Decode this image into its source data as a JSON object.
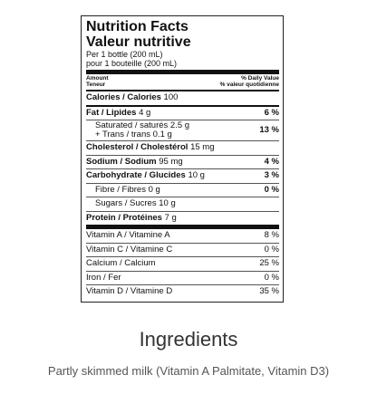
{
  "label": {
    "title_en": "Nutrition Facts",
    "title_fr": "Valeur nutritive",
    "serving_en": "Per 1 bottle (200 mL)",
    "serving_fr": "pour 1 bouteille (200 mL)",
    "header": {
      "amount_en": "Amount",
      "amount_fr": "Teneur",
      "dv_en": "% Daily Value",
      "dv_fr": "% valeur quotidienne"
    },
    "calories": {
      "label": "Calories / Calories",
      "value": "100"
    },
    "fat": {
      "label": "Fat / Lipides",
      "amount": "4 g",
      "dv": "6 %"
    },
    "saturated": {
      "label": "Saturated / saturés",
      "amount": "2.5 g"
    },
    "trans": {
      "label": "+ Trans / trans",
      "amount": "0.1 g"
    },
    "sat_trans_dv": "13 %",
    "cholesterol": {
      "label": "Cholesterol / Cholestérol",
      "amount": "15 mg"
    },
    "sodium": {
      "label": "Sodium / Sodium",
      "amount": "95 mg",
      "dv": "4 %"
    },
    "carbohydrate": {
      "label": "Carbohydrate / Glucides",
      "amount": "10 g",
      "dv": "3 %"
    },
    "fibre": {
      "label": "Fibre / Fibres",
      "amount": "0 g",
      "dv": "0 %"
    },
    "sugars": {
      "label": "Sugars / Sucres",
      "amount": "10 g"
    },
    "protein": {
      "label": "Protein / Protéines",
      "amount": "7 g"
    },
    "vitamins": [
      {
        "label": "Vitamin A / Vitamine A",
        "dv": "8 %"
      },
      {
        "label": "Vitamin C / Vitamine C",
        "dv": "0 %"
      },
      {
        "label": "Calcium / Calcium",
        "dv": "25 %"
      },
      {
        "label": "Iron / Fer",
        "dv": "0 %"
      },
      {
        "label": "Vitamin D / Vitamine D",
        "dv": "35 %"
      }
    ]
  },
  "ingredients": {
    "title": "Ingredients",
    "text": "Partly skimmed milk (Vitamin A Palmitate, Vitamin D3)"
  }
}
